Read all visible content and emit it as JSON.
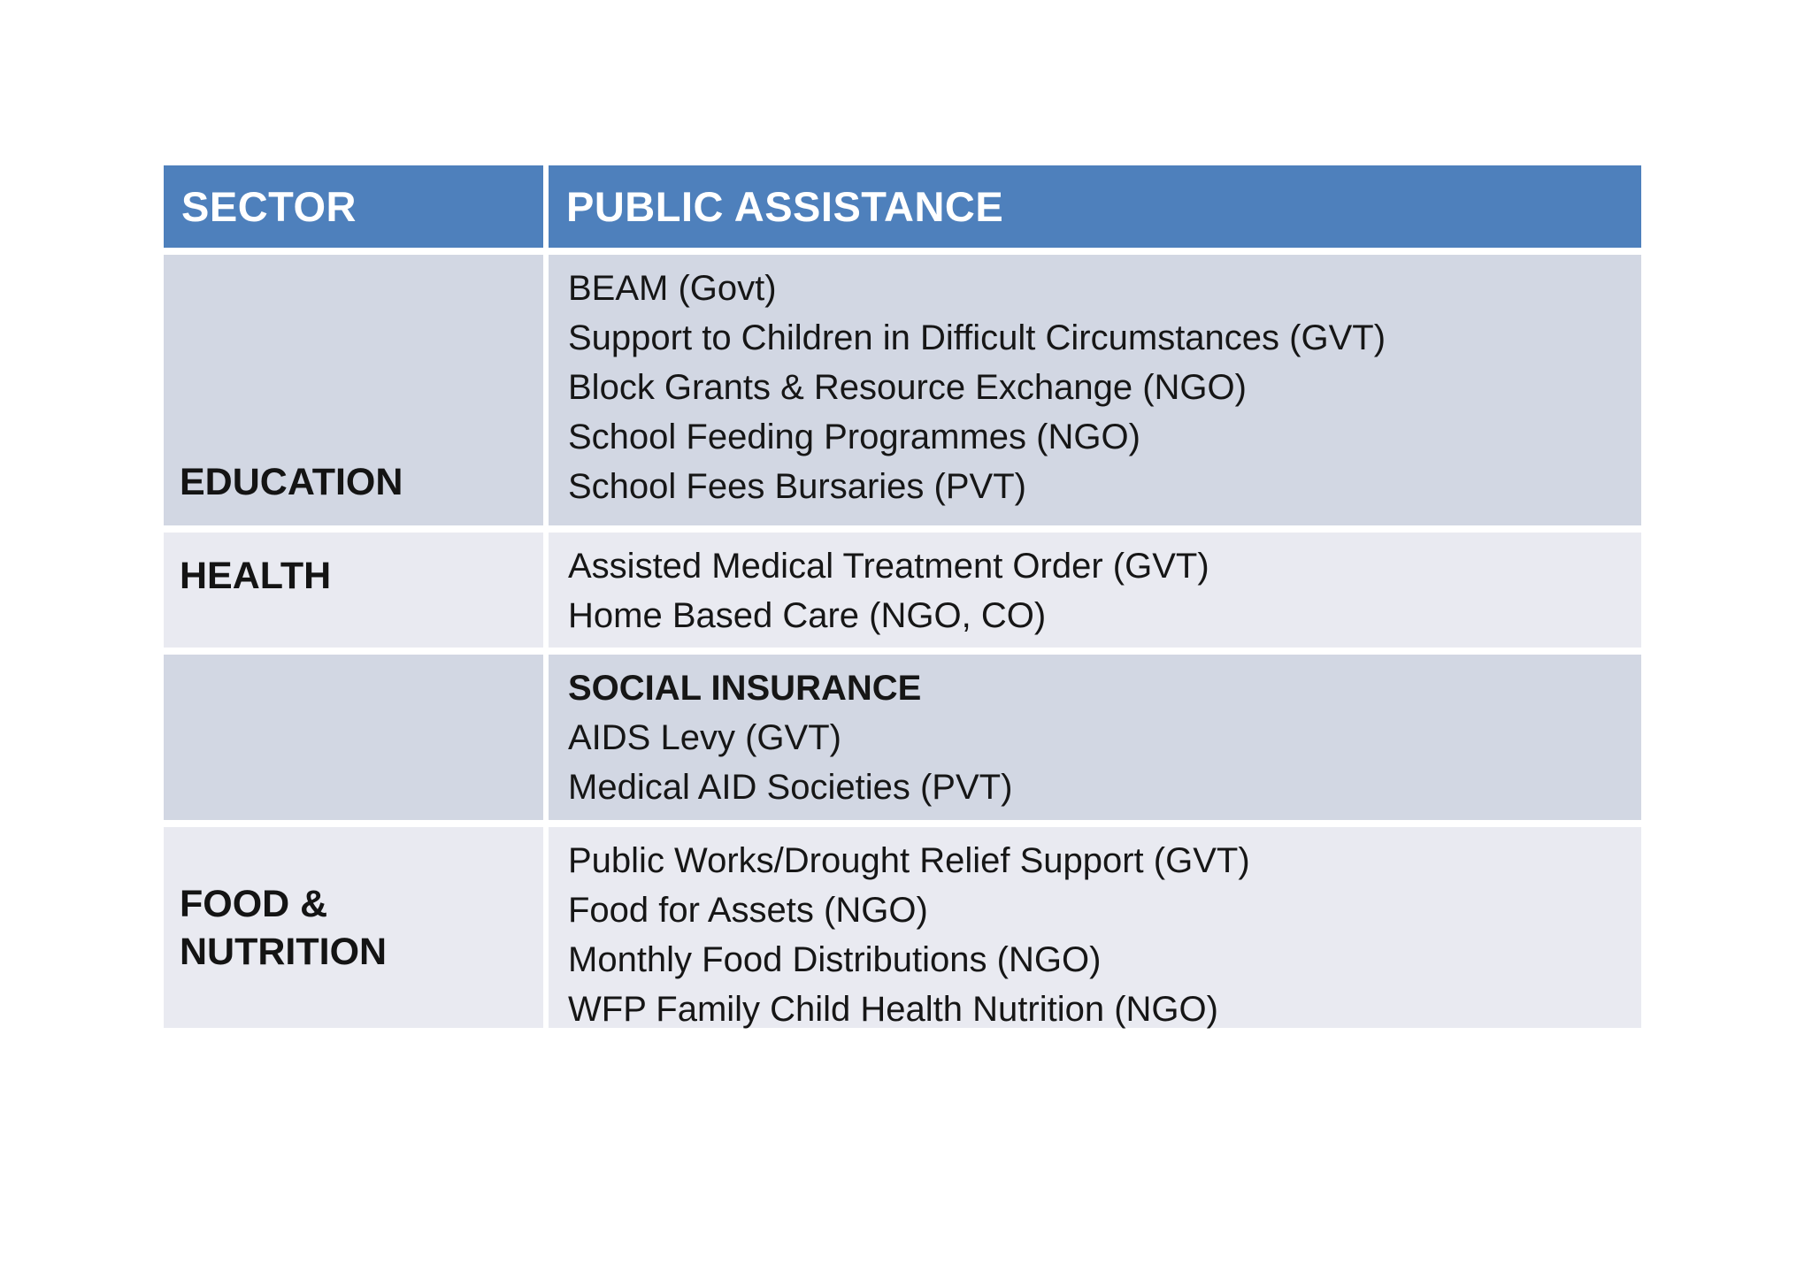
{
  "colors": {
    "header_bg": "#4E80BC",
    "header_text": "#ffffff",
    "row_dark": "#D2D7E3",
    "row_light": "#E9EAF1",
    "body_text": "#161616"
  },
  "table": {
    "headers": [
      "SECTOR",
      "PUBLIC ASSISTANCE"
    ],
    "rows": [
      {
        "sector": "EDUCATION",
        "programs": [
          "BEAM (Govt)",
          "Support to Children in Difficult Circumstances (GVT)",
          "Block Grants & Resource Exchange (NGO)",
          "School Feeding Programmes (NGO)",
          "School Fees Bursaries (PVT)"
        ]
      },
      {
        "sector": "HEALTH",
        "programs": [
          "Assisted Medical Treatment Order (GVT)",
          "Home Based Care (NGO, CO)"
        ]
      },
      {
        "sector": "",
        "programs": [
          "SOCIAL INSURANCE",
          "AIDS Levy (GVT)",
          "Medical AID Societies (PVT)"
        ]
      },
      {
        "sector": "FOOD & NUTRITION",
        "programs": [
          "Public Works/Drought Relief Support (GVT)",
          "Food for Assets (NGO)",
          "Monthly Food Distributions (NGO)",
          "WFP Family Child Health Nutrition (NGO)"
        ]
      }
    ]
  }
}
